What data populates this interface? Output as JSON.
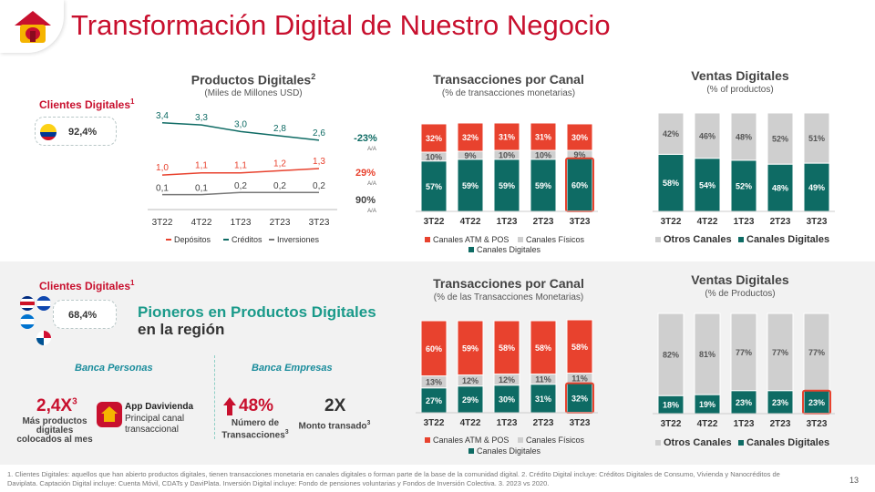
{
  "title": "Transformación Digital de Nuestro Negocio",
  "page_number": "13",
  "colors": {
    "red": "#e8422e",
    "teal": "#0e6b64",
    "gray": "#cfcfcf",
    "brand_red": "#c8102e"
  },
  "top": {
    "clients_label": "Clientes Digitales",
    "clients_sup": "1",
    "clients_value": "92,4%"
  },
  "bottom": {
    "clients_label": "Clientes Digitales",
    "clients_sup": "1",
    "clients_value": "68,4%",
    "headline_1": "Pioneros en Productos Digitales",
    "headline_2": "en la región",
    "banca_personas": "Banca Personas",
    "banca_empresas": "Banca Empresas",
    "kpi1_value": "2,4X",
    "kpi1_sup": "3",
    "kpi1_label": "Más productos digitales colocados al mes",
    "app_name": "App Davivienda",
    "app_desc": "Principal canal transaccional",
    "kpi2_value": "48%",
    "kpi2_label": "Número de Transacciones",
    "kpi2_sup": "3",
    "kpi3_value": "2X",
    "kpi3_label": "Monto transado",
    "kpi3_sup": "3"
  },
  "footnote": "1. Clientes Digitales: aquellos que han abierto productos digitales, tienen transacciones monetaria en canales digitales o forman parte de la base de la comunidad digital.    2. Crédito Digital incluye: Créditos Digitales de Consumo, Vivienda y Nanocréditos de Daviplata. Captación Digital incluye: Cuenta Móvil, CDATs y DaviPlata. Inversión Digital incluye: Fondo de pensiones voluntarias y Fondos de Inversión Colectiva. 3. 2023 vs 2020.",
  "chart_data": [
    {
      "type": "line",
      "title": "Productos Digitales",
      "title_sup": "2",
      "subtitle": "(Miles de Millones USD)",
      "categories": [
        "3T22",
        "4T22",
        "1T23",
        "2T23",
        "3T23"
      ],
      "series": [
        {
          "name": "Depósitos",
          "values": [
            1.0,
            1.1,
            1.1,
            1.2,
            1.3
          ],
          "labels": [
            "1,0",
            "1,1",
            "1,1",
            "1,2",
            "1,3"
          ],
          "color": "#e8422e",
          "growth": "29%"
        },
        {
          "name": "Créditos",
          "values": [
            3.4,
            3.3,
            3.0,
            2.8,
            2.6
          ],
          "labels": [
            "3,4",
            "3,3",
            "3,0",
            "2,8",
            "2,6"
          ],
          "color": "#0e6b64",
          "growth": "-23%"
        },
        {
          "name": "Inversiones",
          "values": [
            0.1,
            0.1,
            0.2,
            0.2,
            0.2
          ],
          "labels": [
            "0,1",
            "0,1",
            "0,2",
            "0,2",
            "0,2"
          ],
          "color": "#777777",
          "growth": "90%"
        }
      ],
      "growth_note": "A/A"
    },
    {
      "type": "bar",
      "title": "Transacciones por Canal",
      "subtitle": "(% de transacciones monetarias)",
      "categories": [
        "3T22",
        "4T22",
        "1T23",
        "2T23",
        "3T23"
      ],
      "series": [
        {
          "name": "Canales Digitales",
          "values": [
            57,
            59,
            59,
            59,
            60
          ],
          "color": "#0e6b64"
        },
        {
          "name": "Canales Físicos",
          "values": [
            10,
            9,
            10,
            10,
            9
          ],
          "color": "#cfcfcf"
        },
        {
          "name": "Canales ATM & POS",
          "values": [
            32,
            32,
            31,
            31,
            30
          ],
          "color": "#e8422e"
        }
      ],
      "legend": [
        "Canales ATM & POS",
        "Canales Físicos",
        "Canales Digitales"
      ]
    },
    {
      "type": "bar",
      "title": "Ventas Digitales",
      "subtitle": "(% of productos)",
      "categories": [
        "3T22",
        "4T22",
        "1T23",
        "2T23",
        "3T23"
      ],
      "series": [
        {
          "name": "Canales Digitales",
          "values": [
            58,
            54,
            52,
            48,
            49
          ],
          "color": "#0e6b64"
        },
        {
          "name": "Otros Canales",
          "values": [
            42,
            46,
            48,
            52,
            51
          ],
          "color": "#cfcfcf"
        }
      ],
      "legend": [
        "Otros Canales",
        "Canales Digitales"
      ]
    },
    {
      "type": "bar",
      "title": "Transacciones por Canal",
      "subtitle": "(% de las Transacciones Monetarias)",
      "categories": [
        "3T22",
        "4T22",
        "1T23",
        "2T23",
        "3T23"
      ],
      "series": [
        {
          "name": "Canales Digitales",
          "values": [
            27,
            29,
            30,
            31,
            32
          ],
          "color": "#0e6b64"
        },
        {
          "name": "Canales Físicos",
          "values": [
            13,
            12,
            12,
            11,
            11
          ],
          "color": "#cfcfcf"
        },
        {
          "name": "Canales ATM & POS",
          "values": [
            60,
            59,
            58,
            58,
            58
          ],
          "color": "#e8422e"
        }
      ],
      "legend": [
        "Canales ATM & POS",
        "Canales Físicos",
        "Canales Digitales"
      ]
    },
    {
      "type": "bar",
      "title": "Ventas Digitales",
      "subtitle": "(% de Productos)",
      "categories": [
        "3T22",
        "4T22",
        "1T23",
        "2T23",
        "3T23"
      ],
      "series": [
        {
          "name": "Canales Digitales",
          "values": [
            18,
            19,
            23,
            23,
            23
          ],
          "color": "#0e6b64"
        },
        {
          "name": "Otros Canales",
          "values": [
            82,
            81,
            77,
            77,
            77
          ],
          "color": "#cfcfcf"
        }
      ],
      "legend": [
        "Otros Canales",
        "Canales Digitales"
      ]
    }
  ]
}
